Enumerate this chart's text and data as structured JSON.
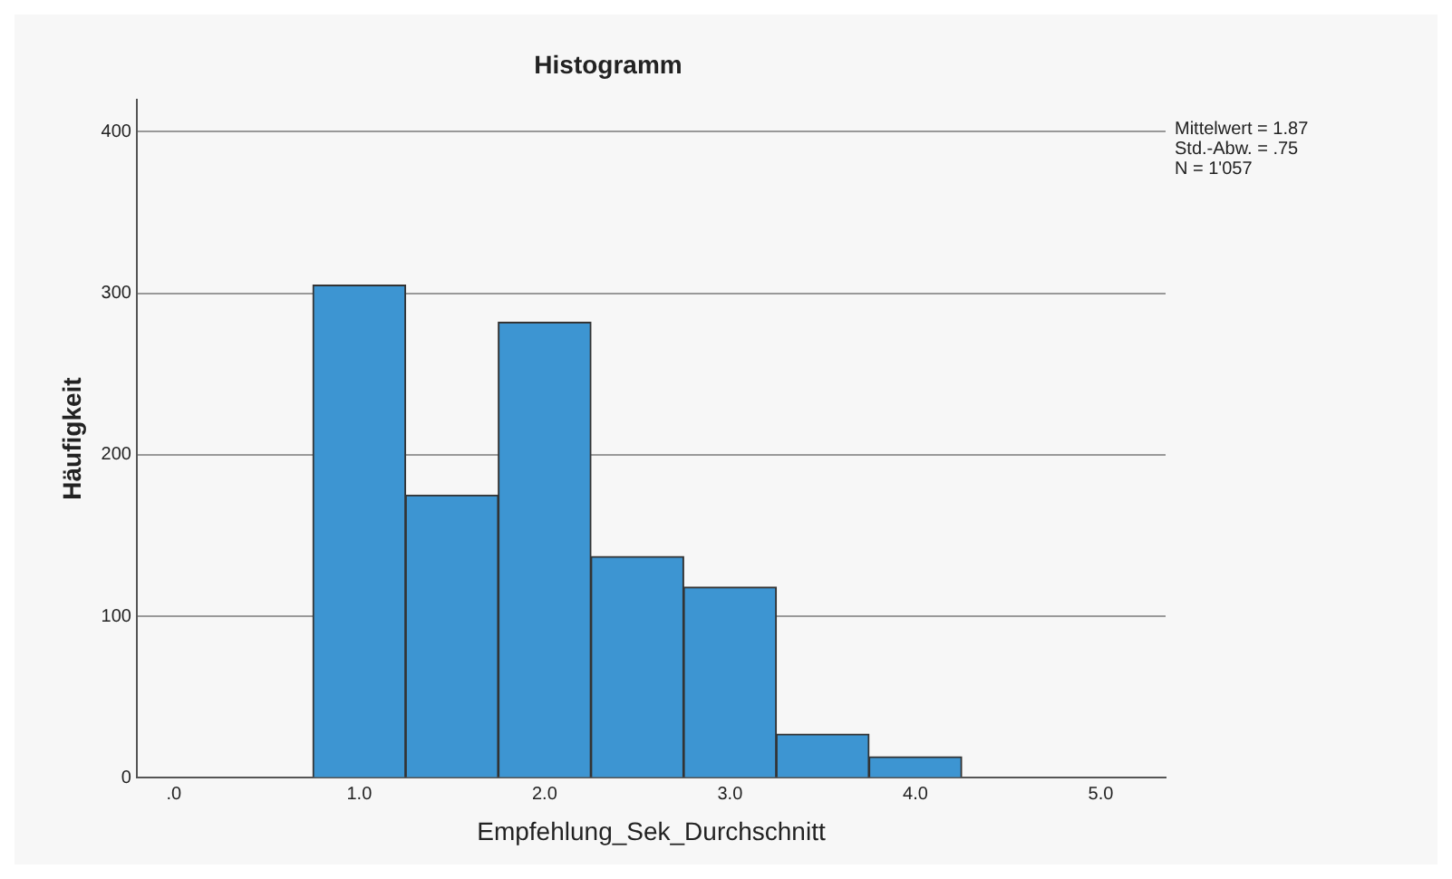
{
  "chart_data": {
    "type": "histogram",
    "title": "Histogramm",
    "xlabel": "Empfehlung_Sek_Durchschnitt",
    "ylabel": "Häufigkeit",
    "bins": [
      0.75,
      1.25,
      1.75,
      2.25,
      2.75,
      3.25,
      3.75,
      4.25
    ],
    "values": [
      305,
      175,
      282,
      137,
      118,
      27,
      13
    ],
    "color": "#3d95d2",
    "xlim": [
      -0.2,
      5.35
    ],
    "xticks": [
      {
        "value": 0,
        "label": ".0"
      },
      {
        "value": 1,
        "label": "1.0"
      },
      {
        "value": 2,
        "label": "2.0"
      },
      {
        "value": 3,
        "label": "3.0"
      },
      {
        "value": 4,
        "label": "4.0"
      },
      {
        "value": 5,
        "label": "5.0"
      }
    ],
    "ylim": [
      0,
      420
    ],
    "yticks": [
      0,
      100,
      200,
      300,
      400
    ],
    "grid": "y",
    "annotations": [
      "Mittelwert = 1.87",
      "Std.-Abw. = .75",
      "N = 1'057"
    ]
  }
}
